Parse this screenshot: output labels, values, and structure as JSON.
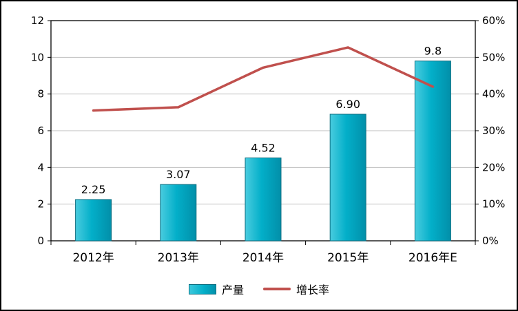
{
  "chart_data": {
    "type": "bar",
    "subtype": "bar+line-combo",
    "categories": [
      "2012年",
      "2013年",
      "2014年",
      "2015年",
      "2016年E"
    ],
    "series": [
      {
        "name": "产量",
        "type": "bar",
        "axis": "left",
        "values": [
          2.25,
          3.07,
          4.52,
          6.9,
          9.8
        ],
        "labels": [
          "2.25",
          "3.07",
          "4.52",
          "6.90",
          "9.8"
        ],
        "color": "#03AFC9",
        "edge_color": "#0E6E80"
      },
      {
        "name": "增长率",
        "type": "line",
        "axis": "right",
        "values": [
          35.5,
          36.4,
          47.2,
          52.7,
          42.0
        ],
        "color": "#C0504D"
      }
    ],
    "left_axis": {
      "min": 0,
      "max": 12,
      "step": 2,
      "suffix": ""
    },
    "right_axis": {
      "min": 0,
      "max": 60,
      "step": 10,
      "suffix": "%"
    },
    "grid": true,
    "gridline_color": "#BFBFBF",
    "plot_border_color": "#000000",
    "legend_position": "bottom",
    "title": ""
  },
  "legend": {
    "items": [
      {
        "label": "产量",
        "swatch": "bar-swatch"
      },
      {
        "label": "增长率",
        "swatch": "line-swatch"
      }
    ]
  }
}
